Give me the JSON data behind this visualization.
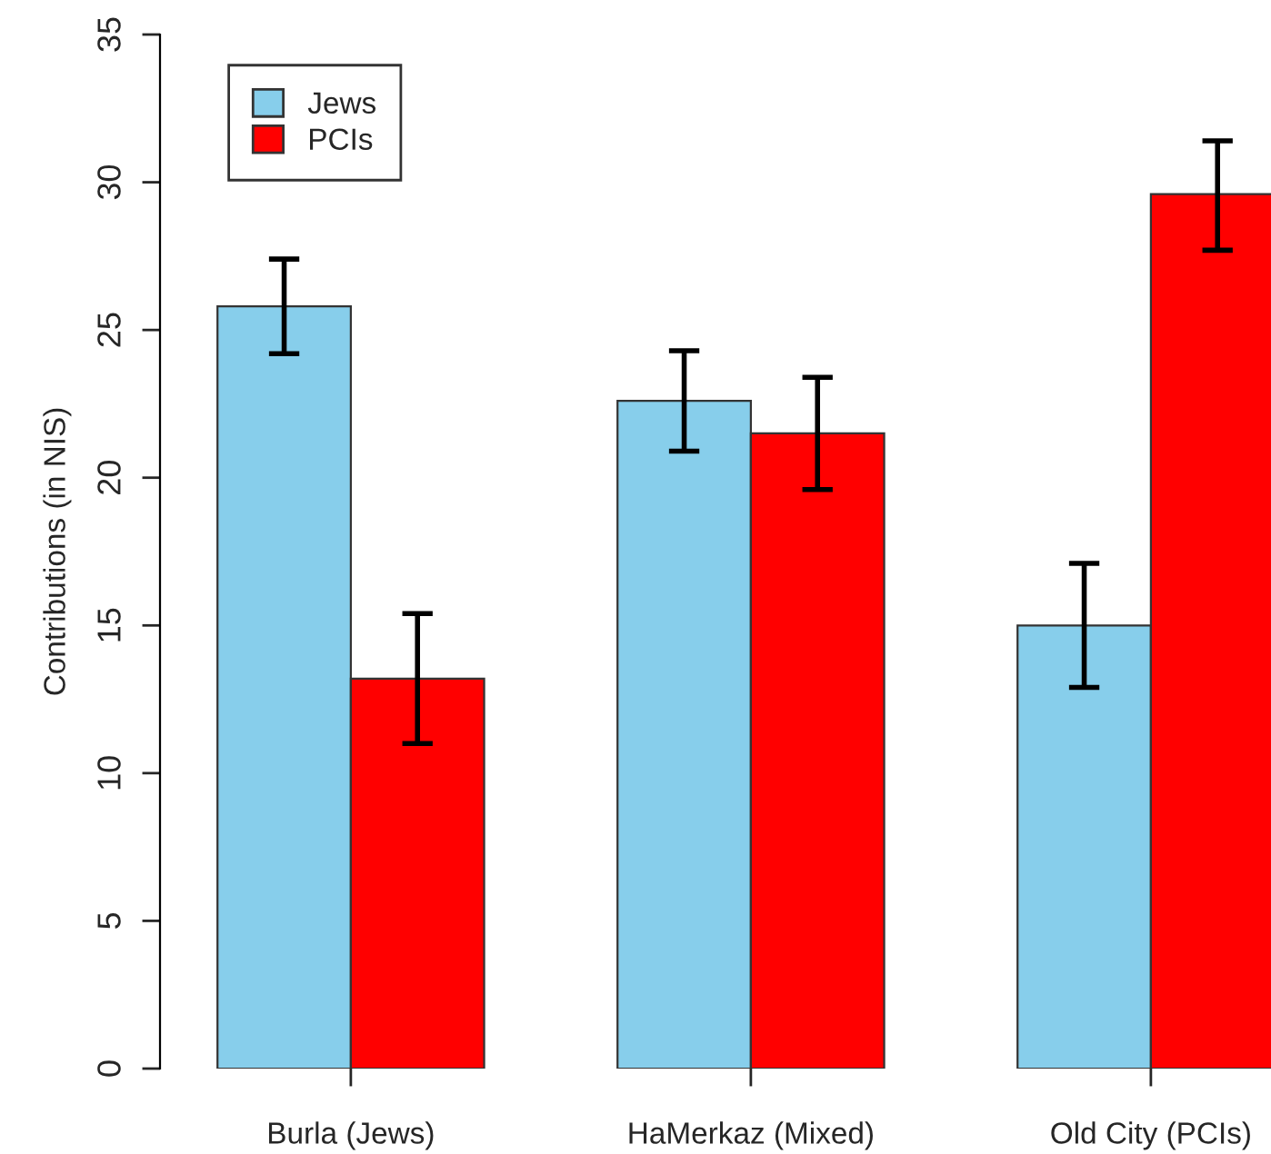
{
  "chart_data": {
    "type": "bar",
    "ylabel": "Contributions (in NIS)",
    "categories": [
      "Burla (Jews)",
      "HaMerkaz (Mixed)",
      "Old City (PCIs)"
    ],
    "series": [
      {
        "name": "Jews",
        "color": "#87ceeb",
        "values": [
          25.8,
          22.6,
          15.0
        ],
        "errors": [
          1.6,
          1.7,
          2.1
        ]
      },
      {
        "name": "PCIs",
        "color": "#ff0000",
        "values": [
          13.2,
          21.5,
          29.6
        ],
        "errors": [
          2.2,
          1.9,
          [
            27.7,
            31.4
          ]
        ]
      }
    ],
    "ylim": [
      0,
      35
    ],
    "yticks": [
      0,
      5,
      10,
      15,
      20,
      25,
      30,
      35
    ],
    "grid": false,
    "legend": "top left"
  }
}
